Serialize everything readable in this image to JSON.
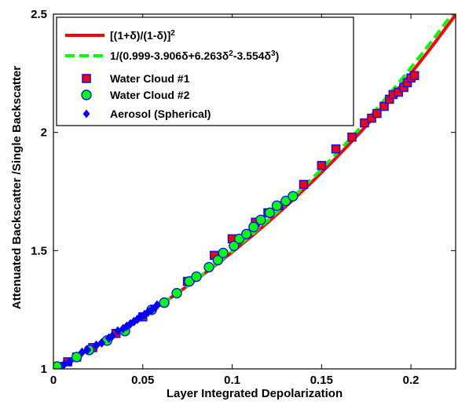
{
  "chart_data": {
    "type": "scatter",
    "xlabel": "Layer Integrated Depolarization",
    "ylabel": "Attenuated Backscatter /Single Backscatter",
    "xlim": [
      0,
      0.225
    ],
    "ylim": [
      1,
      2.5
    ],
    "xticks": [
      0,
      0.05,
      0.1,
      0.15,
      0.2
    ],
    "xtick_labels": [
      "0",
      "0.05",
      "0.1",
      "0.15",
      "0.2"
    ],
    "yticks": [
      1,
      1.5,
      2,
      2.5
    ],
    "ytick_labels": [
      "1",
      "1.5",
      "2",
      "2.5"
    ],
    "grid": false,
    "legend_position": "top-left",
    "legend": [
      {
        "text": "[(1+δ)/(1-δ)]",
        "sup": "2",
        "kind": "solid-line",
        "color": "#ff0000"
      },
      {
        "text_parts": [
          "1/(0.999-3.906δ+6.263δ",
          "2",
          "-3.554δ",
          "3",
          ")"
        ],
        "kind": "dashed-line",
        "color": "#00ff00"
      },
      {
        "text": "Water Cloud #1",
        "kind": "square-marker",
        "color": "#ff0000",
        "edge": "#1010ff"
      },
      {
        "text": "Water Cloud #2",
        "kind": "circle-marker",
        "color": "#00ff00",
        "edge": "#1010ff"
      },
      {
        "text": "Aerosol (Spherical)",
        "kind": "diamond-marker",
        "color": "#0000ff"
      }
    ],
    "series": [
      {
        "name": "[(1+δ)/(1-δ)]^2",
        "kind": "line",
        "color": "#ff0000",
        "formula": "theory1",
        "x_range": [
          0,
          0.225
        ]
      },
      {
        "name": "1/(0.999-3.906δ+6.263δ^2-3.554δ^3)",
        "kind": "line-dashed",
        "color": "#00ff00",
        "formula": "theory2",
        "x_range": [
          0,
          0.225
        ]
      },
      {
        "name": "Water Cloud #1",
        "kind": "square",
        "x": [
          0.003,
          0.008,
          0.013,
          0.022,
          0.035,
          0.05,
          0.075,
          0.09,
          0.1,
          0.113,
          0.12,
          0.126,
          0.14,
          0.15,
          0.158,
          0.167,
          0.174,
          0.178,
          0.181,
          0.185,
          0.188,
          0.19,
          0.193,
          0.196,
          0.198,
          0.2,
          0.202
        ],
        "y": [
          1.01,
          1.03,
          1.05,
          1.09,
          1.15,
          1.22,
          1.37,
          1.48,
          1.55,
          1.62,
          1.66,
          1.69,
          1.78,
          1.86,
          1.93,
          1.98,
          2.04,
          2.06,
          2.08,
          2.11,
          2.14,
          2.16,
          2.17,
          2.19,
          2.21,
          2.23,
          2.24
        ],
        "color": "#ff0000",
        "edge": "#1010ff"
      },
      {
        "name": "Water Cloud #2",
        "kind": "circle",
        "x": [
          0.002,
          0.013,
          0.02,
          0.03,
          0.04,
          0.055,
          0.062,
          0.069,
          0.076,
          0.08,
          0.087,
          0.092,
          0.095,
          0.101,
          0.104,
          0.108,
          0.112,
          0.116,
          0.121,
          0.125,
          0.13,
          0.134
        ],
        "y": [
          1.01,
          1.05,
          1.08,
          1.12,
          1.16,
          1.25,
          1.28,
          1.32,
          1.37,
          1.39,
          1.43,
          1.46,
          1.49,
          1.52,
          1.55,
          1.57,
          1.6,
          1.63,
          1.66,
          1.69,
          1.71,
          1.73
        ],
        "color": "#00ff00",
        "edge": "#1010ff"
      },
      {
        "name": "Aerosol (Spherical)",
        "kind": "diamond",
        "x": [
          0.006,
          0.009,
          0.016,
          0.019,
          0.024,
          0.027,
          0.031,
          0.033,
          0.036,
          0.039,
          0.041,
          0.043,
          0.045,
          0.047,
          0.049,
          0.051,
          0.053,
          0.055,
          0.057,
          0.058
        ],
        "y": [
          1.02,
          1.03,
          1.07,
          1.08,
          1.1,
          1.11,
          1.13,
          1.14,
          1.16,
          1.17,
          1.18,
          1.19,
          1.2,
          1.21,
          1.22,
          1.23,
          1.24,
          1.25,
          1.26,
          1.27
        ],
        "color": "#0000ff"
      }
    ]
  }
}
